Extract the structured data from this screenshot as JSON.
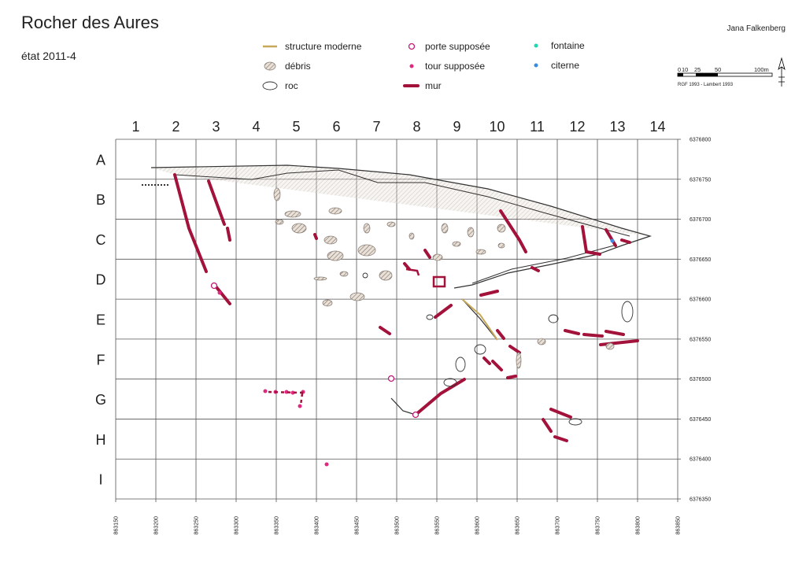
{
  "header": {
    "title": "Rocher des Aures",
    "subtitle": "état 2011-4",
    "author": "Jana Falkenberg"
  },
  "legend": [
    "structure moderne",
    "débris",
    "roc",
    "porte supposée",
    "tour supposée",
    "mur",
    "fontaine",
    "citerne"
  ],
  "scale": {
    "labels": [
      "0",
      "10",
      "25",
      "50",
      "100m"
    ],
    "projection": "RGF 1993 - Lambert 1993"
  },
  "grid": {
    "columns": [
      "1",
      "2",
      "3",
      "4",
      "5",
      "6",
      "7",
      "8",
      "9",
      "10",
      "11",
      "12",
      "13",
      "14"
    ],
    "rows": [
      "A",
      "B",
      "C",
      "D",
      "E",
      "F",
      "G",
      "H",
      "I"
    ],
    "easting": [
      863150,
      863200,
      863250,
      863300,
      863350,
      863400,
      863450,
      863500,
      863550,
      863600,
      863650,
      863700,
      863750,
      863800,
      863850
    ],
    "northing": [
      6376800,
      6376750,
      6376700,
      6376650,
      6376600,
      6376550,
      6376500,
      6376450,
      6376400,
      6376350
    ]
  }
}
